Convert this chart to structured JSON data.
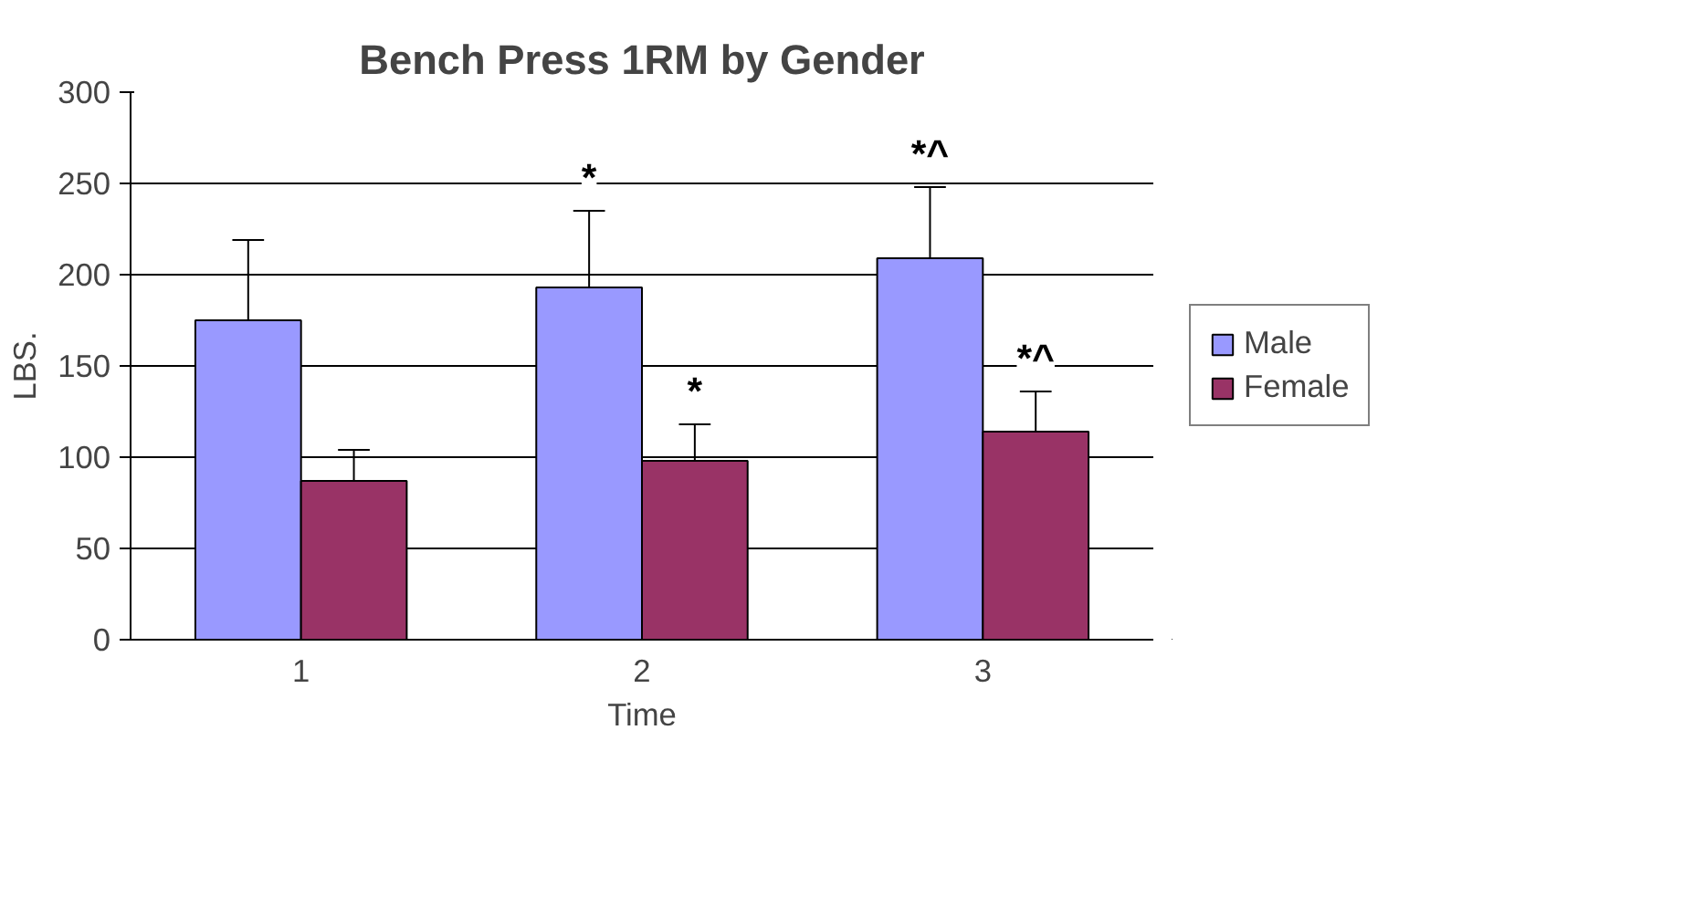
{
  "chart_data": {
    "type": "bar",
    "title": "Bench Press 1RM by Gender",
    "xlabel": "Time",
    "ylabel": "LBS.",
    "categories": [
      "1",
      "2",
      "3"
    ],
    "series": [
      {
        "name": "Male",
        "color": "#9999ff",
        "values": [
          175,
          193,
          209
        ],
        "errors": [
          [
            175,
            219
          ],
          [
            193,
            235
          ],
          [
            209,
            248
          ]
        ]
      },
      {
        "name": "Female",
        "color": "#993366",
        "values": [
          87,
          98,
          114
        ],
        "errors": [
          [
            87,
            104
          ],
          [
            98,
            118
          ],
          [
            114,
            136
          ]
        ]
      }
    ],
    "ylim": [
      0,
      300
    ],
    "yticks": [
      0,
      50,
      100,
      150,
      200,
      250,
      300
    ],
    "grid": "y",
    "legend": "right",
    "annotations": [
      {
        "text": "*",
        "x": "2",
        "y": 193
      },
      {
        "text": "*",
        "x": "2",
        "y": 98
      },
      {
        "text": "*^",
        "x": "3",
        "y": 209
      },
      {
        "text": "*^",
        "x": "3",
        "y": 114
      }
    ]
  }
}
